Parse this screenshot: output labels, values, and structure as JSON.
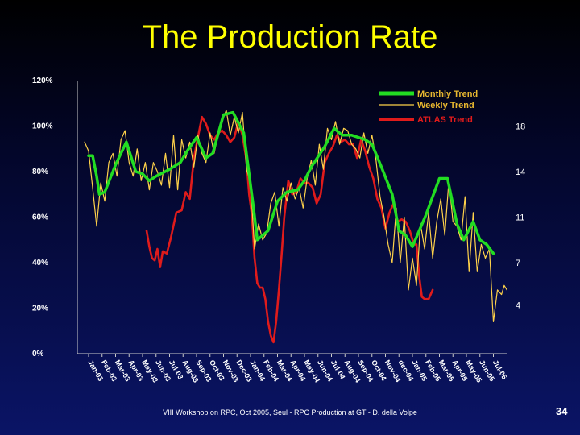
{
  "slide": {
    "title": "The Production Rate",
    "footer": "VIII Workshop on RPC, Oct 2005, Seul - RPC Production at GT - D. della Volpe",
    "page_number": "34"
  },
  "colors": {
    "monthly": "#22dd22",
    "weekly": "#ffd24a",
    "atlas": "#e01b1b",
    "axis_text": "#ffffff",
    "legend_text": "#e8b830"
  },
  "chart_data": {
    "type": "line",
    "title": "",
    "xlabel": "",
    "ylabel": "",
    "ylim": [
      0,
      120
    ],
    "y_ticks": [
      "0%",
      "20%",
      "40%",
      "60%",
      "80%",
      "100%",
      "120%"
    ],
    "y_tick_values": [
      0,
      20,
      40,
      60,
      80,
      100,
      120
    ],
    "right_ticks": [
      "4",
      "7",
      "11",
      "14",
      "18"
    ],
    "right_tick_values": [
      21.5,
      40,
      60,
      80,
      100
    ],
    "grid": false,
    "legend_position": "top-right",
    "x_tick_labels": [
      "Jan-03",
      "Feb-03",
      "Mar-03",
      "Apr-03",
      "May-03",
      "Jun-03",
      "Jul-03",
      "Aug-03",
      "Sep-03",
      "Oct-03",
      "Nov-03",
      "Dec-03",
      "Jan-04",
      "Feb-04",
      "Mar-04",
      "Apr-04",
      "May-04",
      "Jun-04",
      "Jul-04",
      "Aug-04",
      "Sep-04",
      "Oct-04",
      "Nov-04",
      "dec-04",
      "Jan-05",
      "Feb-05",
      "Mar-05",
      "Apr-05",
      "May-05",
      "Jun-05",
      "Jul-05"
    ],
    "series": [
      {
        "name": "Monthly Trend",
        "color_key": "monthly",
        "points": [
          [
            0.0,
            87
          ],
          [
            0.3,
            87
          ],
          [
            0.6,
            78
          ],
          [
            0.8,
            70
          ],
          [
            1.2,
            71
          ],
          [
            2.0,
            83
          ],
          [
            2.8,
            93
          ],
          [
            3.5,
            80
          ],
          [
            4.0,
            79
          ],
          [
            4.5,
            76
          ],
          [
            5.0,
            78
          ],
          [
            6.0,
            81
          ],
          [
            6.8,
            84
          ],
          [
            7.3,
            89
          ],
          [
            8.0,
            95
          ],
          [
            8.7,
            86
          ],
          [
            9.2,
            88
          ],
          [
            10.0,
            105
          ],
          [
            10.7,
            106
          ],
          [
            11.5,
            97
          ],
          [
            12.2,
            65
          ],
          [
            12.5,
            50
          ],
          [
            13.3,
            54
          ],
          [
            14.0,
            67
          ],
          [
            14.7,
            71
          ],
          [
            15.5,
            72
          ],
          [
            16.0,
            76
          ],
          [
            16.5,
            82
          ],
          [
            17.5,
            91
          ],
          [
            18.2,
            99
          ],
          [
            18.8,
            96
          ],
          [
            19.5,
            96
          ],
          [
            20.5,
            94
          ],
          [
            21.0,
            92
          ],
          [
            21.7,
            82
          ],
          [
            22.5,
            70
          ],
          [
            23.0,
            54
          ],
          [
            23.5,
            52
          ],
          [
            24.0,
            47
          ],
          [
            24.5,
            54
          ],
          [
            25.0,
            61
          ],
          [
            25.5,
            69
          ],
          [
            26.0,
            77
          ],
          [
            26.6,
            77
          ],
          [
            27.3,
            57
          ],
          [
            27.8,
            50
          ],
          [
            28.5,
            58
          ],
          [
            29.0,
            50
          ],
          [
            29.5,
            48
          ],
          [
            30.0,
            44
          ]
        ]
      },
      {
        "name": "Weekly Trend",
        "color_key": "weekly",
        "points": [
          [
            -0.3,
            93
          ],
          [
            0.0,
            89
          ],
          [
            0.3,
            73
          ],
          [
            0.6,
            56
          ],
          [
            0.9,
            75
          ],
          [
            1.2,
            67
          ],
          [
            1.5,
            84
          ],
          [
            1.8,
            88
          ],
          [
            2.1,
            78
          ],
          [
            2.4,
            94
          ],
          [
            2.7,
            98
          ],
          [
            3.0,
            84
          ],
          [
            3.3,
            78
          ],
          [
            3.6,
            90
          ],
          [
            3.9,
            76
          ],
          [
            4.2,
            84
          ],
          [
            4.5,
            72
          ],
          [
            4.8,
            84
          ],
          [
            5.1,
            80
          ],
          [
            5.4,
            74
          ],
          [
            5.7,
            88
          ],
          [
            6.0,
            73
          ],
          [
            6.3,
            96
          ],
          [
            6.6,
            72
          ],
          [
            6.9,
            94
          ],
          [
            7.2,
            86
          ],
          [
            7.5,
            93
          ],
          [
            7.8,
            82
          ],
          [
            8.1,
            96
          ],
          [
            8.4,
            88
          ],
          [
            8.7,
            84
          ],
          [
            9.0,
            97
          ],
          [
            9.3,
            88
          ],
          [
            9.6,
            96
          ],
          [
            9.9,
            102
          ],
          [
            10.2,
            107
          ],
          [
            10.5,
            96
          ],
          [
            10.8,
            104
          ],
          [
            11.1,
            97
          ],
          [
            11.4,
            106
          ],
          [
            11.7,
            81
          ],
          [
            12.0,
            75
          ],
          [
            12.3,
            46
          ],
          [
            12.6,
            57
          ],
          [
            12.9,
            50
          ],
          [
            13.2,
            53
          ],
          [
            13.5,
            66
          ],
          [
            13.8,
            71
          ],
          [
            14.1,
            56
          ],
          [
            14.4,
            73
          ],
          [
            14.7,
            67
          ],
          [
            15.0,
            75
          ],
          [
            15.3,
            68
          ],
          [
            15.6,
            73
          ],
          [
            15.9,
            64
          ],
          [
            16.2,
            77
          ],
          [
            16.5,
            85
          ],
          [
            16.8,
            74
          ],
          [
            17.1,
            92
          ],
          [
            17.4,
            81
          ],
          [
            17.7,
            99
          ],
          [
            18.0,
            94
          ],
          [
            18.3,
            102
          ],
          [
            18.6,
            92
          ],
          [
            18.9,
            99
          ],
          [
            19.2,
            98
          ],
          [
            19.5,
            92
          ],
          [
            19.8,
            90
          ],
          [
            20.1,
            86
          ],
          [
            20.4,
            97
          ],
          [
            20.7,
            88
          ],
          [
            21.0,
            96
          ],
          [
            21.3,
            85
          ],
          [
            21.6,
            69
          ],
          [
            21.9,
            60
          ],
          [
            22.2,
            48
          ],
          [
            22.5,
            40
          ],
          [
            22.8,
            64
          ],
          [
            23.1,
            40
          ],
          [
            23.4,
            60
          ],
          [
            23.7,
            28
          ],
          [
            24.0,
            42
          ],
          [
            24.3,
            30
          ],
          [
            24.6,
            57
          ],
          [
            24.9,
            46
          ],
          [
            25.2,
            62
          ],
          [
            25.5,
            42
          ],
          [
            25.8,
            58
          ],
          [
            26.1,
            68
          ],
          [
            26.4,
            52
          ],
          [
            26.7,
            76
          ],
          [
            27.0,
            58
          ],
          [
            27.3,
            56
          ],
          [
            27.6,
            50
          ],
          [
            27.9,
            69
          ],
          [
            28.2,
            36
          ],
          [
            28.5,
            62
          ],
          [
            28.8,
            36
          ],
          [
            29.1,
            48
          ],
          [
            29.4,
            42
          ],
          [
            29.7,
            46
          ],
          [
            30.0,
            14
          ],
          [
            30.3,
            28
          ],
          [
            30.6,
            26
          ],
          [
            30.8,
            30
          ],
          [
            31.0,
            28
          ]
        ]
      },
      {
        "name": "ATLAS Trend",
        "color_key": "atlas",
        "points": [
          [
            4.3,
            54
          ],
          [
            4.5,
            47
          ],
          [
            4.7,
            42
          ],
          [
            4.9,
            41
          ],
          [
            5.1,
            46
          ],
          [
            5.3,
            38
          ],
          [
            5.5,
            45
          ],
          [
            5.8,
            44
          ],
          [
            6.1,
            51
          ],
          [
            6.5,
            62
          ],
          [
            6.9,
            63
          ],
          [
            7.2,
            71
          ],
          [
            7.5,
            68
          ],
          [
            7.8,
            86
          ],
          [
            8.1,
            95
          ],
          [
            8.4,
            104
          ],
          [
            8.7,
            101
          ],
          [
            9.0,
            96
          ],
          [
            9.3,
            94
          ],
          [
            9.6,
            97
          ],
          [
            9.9,
            98
          ],
          [
            10.2,
            96
          ],
          [
            10.5,
            93
          ],
          [
            10.8,
            95
          ],
          [
            11.1,
            102
          ],
          [
            11.4,
            96
          ],
          [
            11.7,
            85
          ],
          [
            11.9,
            70
          ],
          [
            12.1,
            61
          ],
          [
            12.3,
            42
          ],
          [
            12.5,
            31
          ],
          [
            12.7,
            29
          ],
          [
            12.9,
            29
          ],
          [
            13.1,
            24
          ],
          [
            13.3,
            14
          ],
          [
            13.5,
            8
          ],
          [
            13.7,
            5
          ],
          [
            13.9,
            14
          ],
          [
            14.1,
            28
          ],
          [
            14.3,
            43
          ],
          [
            14.5,
            60
          ],
          [
            14.8,
            76
          ],
          [
            15.1,
            70
          ],
          [
            15.4,
            71
          ],
          [
            15.7,
            77
          ],
          [
            16.0,
            75
          ],
          [
            16.3,
            75
          ],
          [
            16.6,
            73
          ],
          [
            16.9,
            66
          ],
          [
            17.2,
            70
          ],
          [
            17.5,
            84
          ],
          [
            17.8,
            88
          ],
          [
            18.1,
            91
          ],
          [
            18.4,
            96
          ],
          [
            18.7,
            93
          ],
          [
            19.0,
            94
          ],
          [
            19.3,
            92
          ],
          [
            19.6,
            92
          ],
          [
            19.9,
            86
          ],
          [
            20.2,
            94
          ],
          [
            20.5,
            89
          ],
          [
            20.8,
            82
          ],
          [
            21.1,
            77
          ],
          [
            21.4,
            68
          ],
          [
            21.7,
            64
          ],
          [
            22.0,
            55
          ],
          [
            22.3,
            62
          ],
          [
            22.6,
            66
          ],
          [
            22.9,
            58
          ],
          [
            23.2,
            59
          ],
          [
            23.5,
            58
          ],
          [
            23.8,
            54
          ],
          [
            24.1,
            48
          ],
          [
            24.3,
            48
          ],
          [
            24.5,
            34
          ],
          [
            24.7,
            25
          ],
          [
            24.9,
            24
          ],
          [
            25.2,
            24
          ],
          [
            25.5,
            28
          ]
        ]
      }
    ]
  }
}
